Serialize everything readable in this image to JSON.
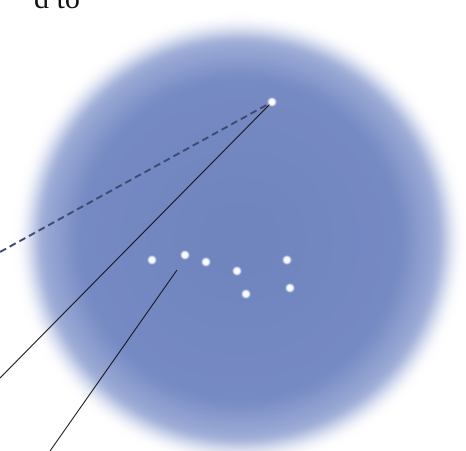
{
  "caption": {
    "text": "d to"
  },
  "sky": {
    "inner_color": "#6f84bd",
    "edge_color": "#8d9fd0"
  },
  "star_color": "#f4f7ff",
  "pointer_color": "#111111",
  "dashed_pointer_color": "#3d4a6e"
}
